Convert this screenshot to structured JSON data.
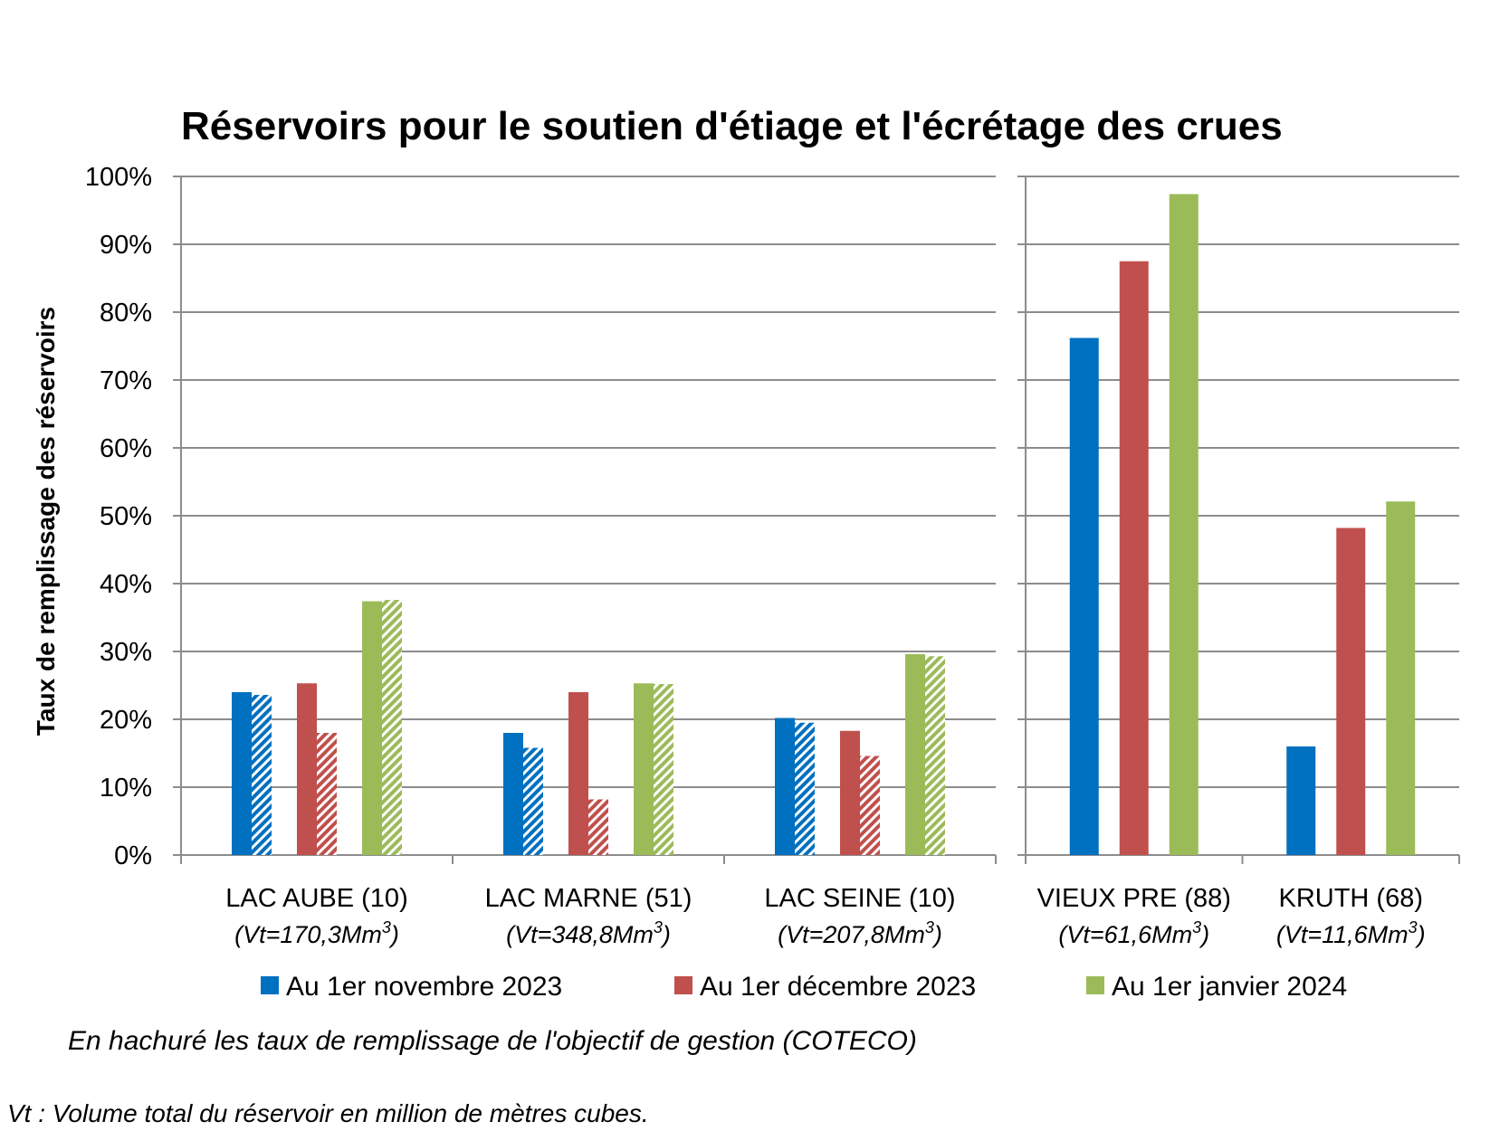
{
  "chart_data": {
    "type": "bar",
    "title": "Réservoirs pour le soutien d'étiage et l'écrétage des crues",
    "ylabel": "Taux de remplissage des réservoirs",
    "ylim": [
      0,
      100
    ],
    "yticks": [
      "0%",
      "10%",
      "20%",
      "30%",
      "40%",
      "50%",
      "60%",
      "70%",
      "80%",
      "90%",
      "100%"
    ],
    "grid": true,
    "legend_position": "bottom",
    "panels": [
      {
        "categories": [
          {
            "name": "LAC AUBE (10)",
            "vt": "(Vt=170,3Mm",
            "vt_sup": "3",
            "vt_end": ")"
          },
          {
            "name": "LAC MARNE (51)",
            "vt": "(Vt=348,8Mm",
            "vt_sup": "3",
            "vt_end": ")"
          },
          {
            "name": "LAC SEINE (10)",
            "vt": "(Vt=207,8Mm",
            "vt_sup": "3",
            "vt_end": ")"
          }
        ],
        "series": [
          {
            "name": "Au 1er novembre 2023",
            "values": [
              24,
              18,
              20.2
            ],
            "objective": [
              23.6,
              15.8,
              19.5
            ]
          },
          {
            "name": "Au 1er décembre 2023",
            "values": [
              25.3,
              24,
              18.3
            ],
            "objective": [
              18,
              8.2,
              14.6
            ]
          },
          {
            "name": "Au 1er janvier 2024",
            "values": [
              37.4,
              25.3,
              29.6
            ],
            "objective": [
              37.6,
              25.2,
              29.3
            ]
          }
        ]
      },
      {
        "categories": [
          {
            "name": "VIEUX PRE (88)",
            "vt": "(Vt=61,6Mm",
            "vt_sup": "3",
            "vt_end": ")"
          },
          {
            "name": "KRUTH (68)",
            "vt": "(Vt=11,6Mm",
            "vt_sup": "3",
            "vt_end": ")"
          }
        ],
        "series": [
          {
            "name": "Au 1er novembre 2023",
            "values": [
              76.2,
              16
            ]
          },
          {
            "name": "Au 1er décembre 2023",
            "values": [
              87.5,
              48.2
            ]
          },
          {
            "name": "Au 1er janvier 2024",
            "values": [
              97.4,
              52.1
            ]
          }
        ]
      }
    ],
    "colors": [
      "#0070C0",
      "#C0504D",
      "#9BBB59"
    ],
    "note": "En hachuré les taux de remplissage de l'objectif de gestion (COTECO)",
    "footnote": "Vt : Volume total du réservoir en million de mètres cubes."
  }
}
